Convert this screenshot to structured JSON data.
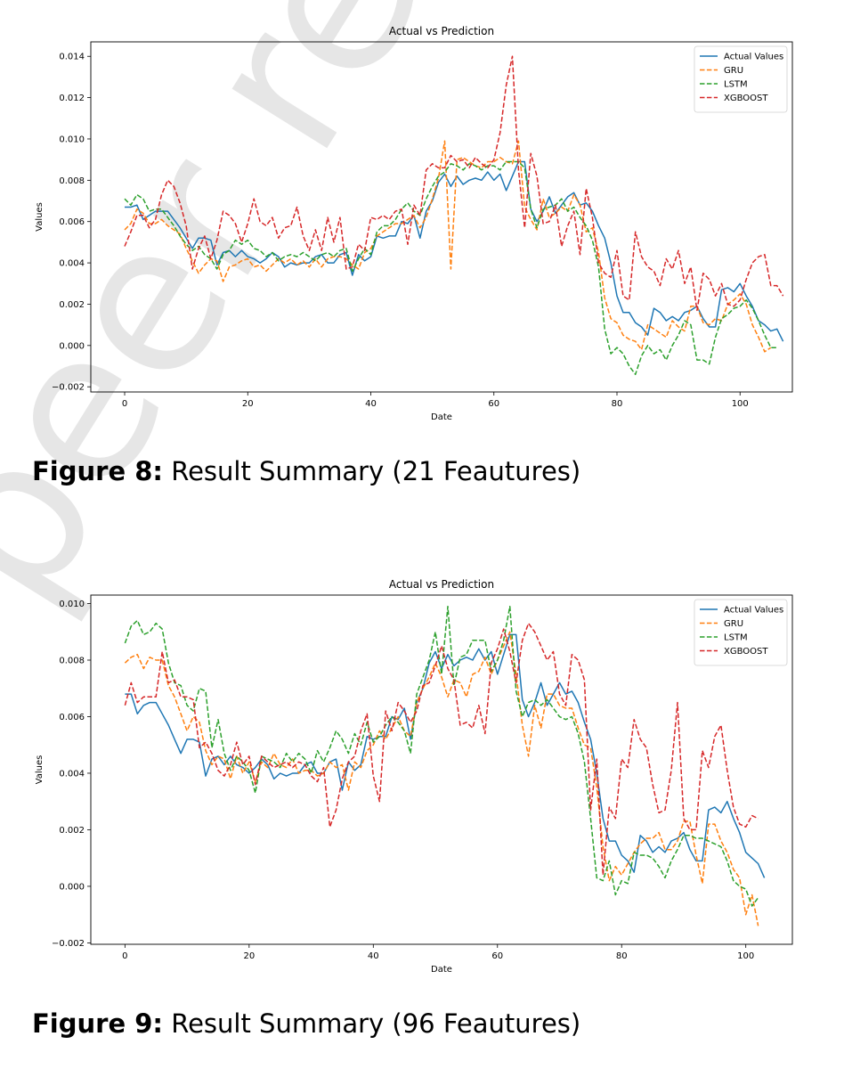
{
  "figures": [
    {
      "label": "Figure 8:",
      "caption": "Result Summary (21 Feautures)"
    },
    {
      "label": "Figure 9:",
      "caption": "Result Summary (96 Feautures)"
    }
  ],
  "watermark": {
    "text": "peer re"
  },
  "chart_data": [
    {
      "type": "line",
      "title": "Actual vs Prediction",
      "xlabel": "Date",
      "ylabel": "Values",
      "xlim": [
        -5.5,
        108.5
      ],
      "ylim": [
        -0.00225,
        0.0147
      ],
      "xticks": [
        0,
        20,
        40,
        60,
        80,
        100
      ],
      "xtick_labels": [
        "0",
        "20",
        "40",
        "60",
        "80",
        "100"
      ],
      "yticks": [
        -0.002,
        0.0,
        0.002,
        0.004,
        0.006,
        0.008,
        0.01,
        0.012,
        0.014
      ],
      "ytick_labels": [
        "−0.002",
        "0.000",
        "0.002",
        "0.004",
        "0.006",
        "0.008",
        "0.010",
        "0.012",
        "0.014"
      ],
      "grid": false,
      "legend": "top-right",
      "series": [
        {
          "name": "Actual Values",
          "color": "#1f77b4",
          "style": "solid",
          "values": [
            0.0067,
            0.0067,
            0.0068,
            0.0061,
            0.0063,
            0.0065,
            0.0065,
            0.0065,
            0.0061,
            0.0057,
            0.0052,
            0.0047,
            0.0052,
            0.0052,
            0.0051,
            0.0039,
            0.0045,
            0.0046,
            0.0043,
            0.0046,
            0.0043,
            0.0042,
            0.004,
            0.0042,
            0.0045,
            0.0043,
            0.0038,
            0.004,
            0.0039,
            0.004,
            0.004,
            0.0043,
            0.0044,
            0.004,
            0.004,
            0.0044,
            0.0045,
            0.0034,
            0.0044,
            0.0041,
            0.0043,
            0.0053,
            0.0052,
            0.0053,
            0.0053,
            0.006,
            0.0059,
            0.0063,
            0.0052,
            0.0065,
            0.007,
            0.0079,
            0.0083,
            0.0077,
            0.0082,
            0.0078,
            0.008,
            0.0081,
            0.008,
            0.0084,
            0.008,
            0.0083,
            0.0075,
            0.0082,
            0.0089,
            0.0089,
            0.0066,
            0.006,
            0.0065,
            0.0072,
            0.0064,
            0.0068,
            0.0072,
            0.0074,
            0.0068,
            0.0069,
            0.0065,
            0.0058,
            0.0052,
            0.004,
            0.0024,
            0.0016,
            0.0016,
            0.0011,
            0.0009,
            0.0005,
            0.0018,
            0.0016,
            0.0012,
            0.0014,
            0.0012,
            0.0016,
            0.0017,
            0.0019,
            0.0013,
            0.0009,
            0.0009,
            0.0027,
            0.0028,
            0.0026,
            0.003,
            0.0024,
            0.0019,
            0.0012,
            0.001,
            0.0007,
            0.0008,
            0.0002
          ]
        },
        {
          "name": "GRU",
          "color": "#ff7f0e",
          "style": "dashed",
          "values": [
            0.0056,
            0.0059,
            0.0066,
            0.0064,
            0.0059,
            0.0059,
            0.0061,
            0.0058,
            0.0056,
            0.0054,
            0.0047,
            0.0041,
            0.0035,
            0.0039,
            0.0042,
            0.0041,
            0.0031,
            0.0038,
            0.0039,
            0.0041,
            0.0042,
            0.0038,
            0.0039,
            0.0036,
            0.0039,
            0.0042,
            0.004,
            0.0042,
            0.0039,
            0.0041,
            0.0038,
            0.0042,
            0.0038,
            0.0042,
            0.0043,
            0.0043,
            0.0042,
            0.0039,
            0.0037,
            0.0045,
            0.0047,
            0.0053,
            0.0055,
            0.0057,
            0.0059,
            0.0059,
            0.0061,
            0.0063,
            0.0057,
            0.0062,
            0.0071,
            0.0081,
            0.0099,
            0.0037,
            0.009,
            0.0091,
            0.0089,
            0.0087,
            0.0086,
            0.0089,
            0.0089,
            0.0091,
            0.0089,
            0.0088,
            0.0099,
            0.0067,
            0.0061,
            0.0056,
            0.0071,
            0.0062,
            0.0064,
            0.0067,
            0.0065,
            0.0073,
            0.0068,
            0.0055,
            0.0057,
            0.0045,
            0.0023,
            0.0013,
            0.0011,
            0.0005,
            0.0003,
            0.0002,
            -0.0002,
            0.001,
            0.0008,
            0.0006,
            0.0004,
            0.0012,
            0.0009,
            0.0007,
            0.0019,
            0.0019,
            0.0011,
            0.001,
            0.0013,
            0.0012,
            0.002,
            0.0022,
            0.0025,
            0.002,
            0.001,
            0.0004,
            -0.0003,
            -0.0001
          ]
        },
        {
          "name": "LSTM",
          "color": "#2ca02c",
          "style": "dashed",
          "values": [
            0.0071,
            0.0068,
            0.0073,
            0.0071,
            0.0065,
            0.0066,
            0.0066,
            0.0062,
            0.0058,
            0.0053,
            0.0049,
            0.0046,
            0.0048,
            0.0044,
            0.0042,
            0.0037,
            0.0044,
            0.0046,
            0.0051,
            0.0049,
            0.0051,
            0.0047,
            0.0046,
            0.0043,
            0.0045,
            0.0041,
            0.0043,
            0.0044,
            0.0043,
            0.0045,
            0.0043,
            0.0041,
            0.0044,
            0.0045,
            0.0043,
            0.0046,
            0.0047,
            0.0036,
            0.0042,
            0.0047,
            0.0044,
            0.0055,
            0.0058,
            0.0058,
            0.0061,
            0.0066,
            0.0069,
            0.0065,
            0.0063,
            0.0071,
            0.0077,
            0.0082,
            0.0084,
            0.0088,
            0.0087,
            0.0085,
            0.0088,
            0.0087,
            0.0085,
            0.0087,
            0.0087,
            0.0085,
            0.0089,
            0.0089,
            0.0089,
            0.0086,
            0.0066,
            0.0057,
            0.0066,
            0.0067,
            0.0068,
            0.0071,
            0.0065,
            0.0067,
            0.0062,
            0.0058,
            0.0051,
            0.0038,
            0.0008,
            -0.0004,
            -0.0001,
            -0.0004,
            -0.001,
            -0.0014,
            -0.0005,
            0.0,
            -0.0004,
            -0.0002,
            -0.0007,
            0.0,
            0.0005,
            0.0012,
            0.001,
            -0.0007,
            -0.0007,
            -0.0009,
            0.0004,
            0.0013,
            0.0015,
            0.0018,
            0.0019,
            0.0022,
            0.0018,
            0.0012,
            0.0005,
            -0.0001,
            -0.0001
          ]
        },
        {
          "name": "XGBOOST",
          "color": "#d62728",
          "style": "dashed",
          "values": [
            0.0048,
            0.0055,
            0.0063,
            0.0063,
            0.0057,
            0.0061,
            0.0073,
            0.008,
            0.0077,
            0.0069,
            0.0058,
            0.0037,
            0.0047,
            0.0053,
            0.0042,
            0.0051,
            0.0065,
            0.0063,
            0.0059,
            0.005,
            0.0059,
            0.0071,
            0.006,
            0.0058,
            0.0062,
            0.0052,
            0.0057,
            0.0058,
            0.0067,
            0.0053,
            0.0046,
            0.0056,
            0.0046,
            0.0062,
            0.005,
            0.0062,
            0.0037,
            0.0038,
            0.0049,
            0.0046,
            0.0062,
            0.0061,
            0.0063,
            0.0061,
            0.0065,
            0.0066,
            0.0049,
            0.0068,
            0.0063,
            0.0085,
            0.0088,
            0.0086,
            0.0086,
            0.0092,
            0.0089,
            0.009,
            0.0086,
            0.0091,
            0.0088,
            0.0086,
            0.009,
            0.0103,
            0.0126,
            0.014,
            0.0085,
            0.0057,
            0.0093,
            0.0082,
            0.0059,
            0.006,
            0.0068,
            0.0048,
            0.0058,
            0.0065,
            0.0044,
            0.0076,
            0.0062,
            0.004,
            0.0035,
            0.0033,
            0.0046,
            0.0024,
            0.0022,
            0.0055,
            0.0043,
            0.0038,
            0.0036,
            0.0029,
            0.0042,
            0.0037,
            0.0046,
            0.003,
            0.0038,
            0.0017,
            0.0035,
            0.0032,
            0.0024,
            0.003,
            0.002,
            0.0019,
            0.0022,
            0.0032,
            0.004,
            0.0043,
            0.0044,
            0.0029,
            0.0029,
            0.0024
          ]
        }
      ]
    },
    {
      "type": "line",
      "title": "Actual vs Prediction",
      "xlabel": "Date",
      "ylabel": "Values",
      "xlim": [
        -5.5,
        107.5
      ],
      "ylim": [
        -0.00205,
        0.0103
      ],
      "xticks": [
        0,
        20,
        40,
        60,
        80,
        100
      ],
      "xtick_labels": [
        "0",
        "20",
        "40",
        "60",
        "80",
        "100"
      ],
      "yticks": [
        -0.002,
        0.0,
        0.002,
        0.004,
        0.006,
        0.008,
        0.01
      ],
      "ytick_labels": [
        "−0.002",
        "0.000",
        "0.002",
        "0.004",
        "0.006",
        "0.008",
        "0.010"
      ],
      "grid": false,
      "legend": "top-right",
      "series": [
        {
          "name": "Actual Values",
          "color": "#1f77b4",
          "style": "solid",
          "values": [
            0.0068,
            0.0068,
            0.0061,
            0.0064,
            0.0065,
            0.0065,
            0.0061,
            0.0057,
            0.0052,
            0.0047,
            0.0052,
            0.0052,
            0.0051,
            0.0039,
            0.0045,
            0.0046,
            0.0043,
            0.0046,
            0.0043,
            0.0042,
            0.004,
            0.0042,
            0.0045,
            0.0043,
            0.0038,
            0.004,
            0.0039,
            0.004,
            0.004,
            0.0043,
            0.0044,
            0.004,
            0.004,
            0.0044,
            0.0045,
            0.0034,
            0.0044,
            0.0041,
            0.0043,
            0.0053,
            0.0052,
            0.0053,
            0.0053,
            0.006,
            0.0059,
            0.0063,
            0.0052,
            0.0065,
            0.007,
            0.0079,
            0.0083,
            0.0077,
            0.0082,
            0.0078,
            0.008,
            0.0081,
            0.008,
            0.0084,
            0.008,
            0.0083,
            0.0075,
            0.0082,
            0.0089,
            0.0089,
            0.0066,
            0.006,
            0.0065,
            0.0072,
            0.0064,
            0.0068,
            0.0072,
            0.0068,
            0.0069,
            0.0065,
            0.0058,
            0.0052,
            0.004,
            0.0024,
            0.0016,
            0.0016,
            0.0011,
            0.0009,
            0.0005,
            0.0018,
            0.0016,
            0.0012,
            0.0014,
            0.0012,
            0.0016,
            0.0017,
            0.0019,
            0.0013,
            0.0009,
            0.0009,
            0.0027,
            0.0028,
            0.0026,
            0.003,
            0.0024,
            0.0019,
            0.0012,
            0.001,
            0.0008,
            0.0003
          ]
        },
        {
          "name": "GRU",
          "color": "#ff7f0e",
          "style": "dashed",
          "values": [
            0.0079,
            0.0081,
            0.0082,
            0.0077,
            0.0081,
            0.008,
            0.008,
            0.0071,
            0.0067,
            0.0061,
            0.0055,
            0.006,
            0.0058,
            0.0048,
            0.0043,
            0.0046,
            0.0045,
            0.0038,
            0.0046,
            0.004,
            0.0044,
            0.0037,
            0.0044,
            0.0042,
            0.0047,
            0.0043,
            0.0042,
            0.0045,
            0.004,
            0.0041,
            0.0041,
            0.0039,
            0.004,
            0.0044,
            0.0042,
            0.0043,
            0.0034,
            0.0044,
            0.0042,
            0.0048,
            0.005,
            0.0055,
            0.0052,
            0.0056,
            0.006,
            0.0055,
            0.0053,
            0.0065,
            0.007,
            0.0074,
            0.0079,
            0.0074,
            0.0067,
            0.0073,
            0.0072,
            0.0067,
            0.0075,
            0.0076,
            0.0081,
            0.0075,
            0.008,
            0.0085,
            0.009,
            0.0075,
            0.0057,
            0.0046,
            0.0064,
            0.0056,
            0.0068,
            0.0068,
            0.0064,
            0.0063,
            0.0063,
            0.0056,
            0.005,
            0.0049,
            0.0035,
            0.0014,
            0.0002,
            0.0007,
            0.0004,
            0.0008,
            0.0012,
            0.0015,
            0.0017,
            0.0017,
            0.0019,
            0.0013,
            0.0013,
            0.0016,
            0.0023,
            0.0023,
            0.0011,
            0.0001,
            0.0022,
            0.0022,
            0.0016,
            0.0012,
            0.0006,
            0.0003,
            -0.001,
            -0.0003,
            -0.0014
          ]
        },
        {
          "name": "LSTM",
          "color": "#2ca02c",
          "style": "dashed",
          "values": [
            0.0086,
            0.0092,
            0.0094,
            0.0089,
            0.009,
            0.0093,
            0.0091,
            0.0079,
            0.0072,
            0.0071,
            0.0064,
            0.0062,
            0.007,
            0.0069,
            0.0049,
            0.0059,
            0.0047,
            0.0041,
            0.0046,
            0.0044,
            0.0041,
            0.0033,
            0.0046,
            0.0045,
            0.0044,
            0.0042,
            0.0047,
            0.0044,
            0.0047,
            0.0045,
            0.004,
            0.0048,
            0.0044,
            0.0049,
            0.0055,
            0.0052,
            0.0047,
            0.0054,
            0.005,
            0.0058,
            0.0051,
            0.0053,
            0.0057,
            0.006,
            0.0058,
            0.0055,
            0.0047,
            0.0068,
            0.0074,
            0.008,
            0.009,
            0.0075,
            0.0099,
            0.0071,
            0.0081,
            0.0082,
            0.0087,
            0.0087,
            0.0087,
            0.0076,
            0.008,
            0.0087,
            0.0099,
            0.0069,
            0.006,
            0.0065,
            0.0066,
            0.0064,
            0.0066,
            0.0063,
            0.006,
            0.0059,
            0.006,
            0.0054,
            0.0044,
            0.0024,
            0.0003,
            0.0002,
            0.0009,
            -0.0003,
            0.0002,
            0.0001,
            0.0012,
            0.0011,
            0.0011,
            0.001,
            0.0007,
            0.0003,
            0.0009,
            0.0013,
            0.0018,
            0.0018,
            0.0017,
            0.0017,
            0.0016,
            0.0015,
            0.0014,
            0.0009,
            0.0002,
            0.0,
            -0.0001,
            -0.0007,
            -0.0004
          ]
        },
        {
          "name": "XGBOOST",
          "color": "#d62728",
          "style": "dashed",
          "values": [
            0.0064,
            0.0072,
            0.0065,
            0.0067,
            0.0067,
            0.0067,
            0.0083,
            0.0072,
            0.0073,
            0.0067,
            0.0067,
            0.0066,
            0.0049,
            0.0051,
            0.0047,
            0.0041,
            0.0039,
            0.0043,
            0.0051,
            0.0043,
            0.0046,
            0.0036,
            0.0046,
            0.0044,
            0.0042,
            0.0043,
            0.0044,
            0.0042,
            0.0044,
            0.0043,
            0.0039,
            0.0037,
            0.0042,
            0.0021,
            0.0027,
            0.0038,
            0.0044,
            0.0046,
            0.0055,
            0.0061,
            0.0039,
            0.003,
            0.0062,
            0.0055,
            0.0065,
            0.0062,
            0.0058,
            0.0062,
            0.0071,
            0.0072,
            0.0078,
            0.0085,
            0.0077,
            0.0073,
            0.0057,
            0.0058,
            0.0056,
            0.0064,
            0.0054,
            0.0079,
            0.0084,
            0.0091,
            0.0083,
            0.0072,
            0.0087,
            0.0093,
            0.009,
            0.0085,
            0.008,
            0.0083,
            0.0068,
            0.0064,
            0.0082,
            0.008,
            0.0073,
            0.0027,
            0.0045,
            0.0004,
            0.0028,
            0.0024,
            0.0045,
            0.0042,
            0.0059,
            0.0052,
            0.0049,
            0.0036,
            0.0026,
            0.0027,
            0.0041,
            0.0065,
            0.0024,
            0.002,
            0.002,
            0.0048,
            0.0042,
            0.0053,
            0.0057,
            0.0041,
            0.0028,
            0.0022,
            0.0021,
            0.0025,
            0.0024
          ]
        }
      ]
    }
  ]
}
